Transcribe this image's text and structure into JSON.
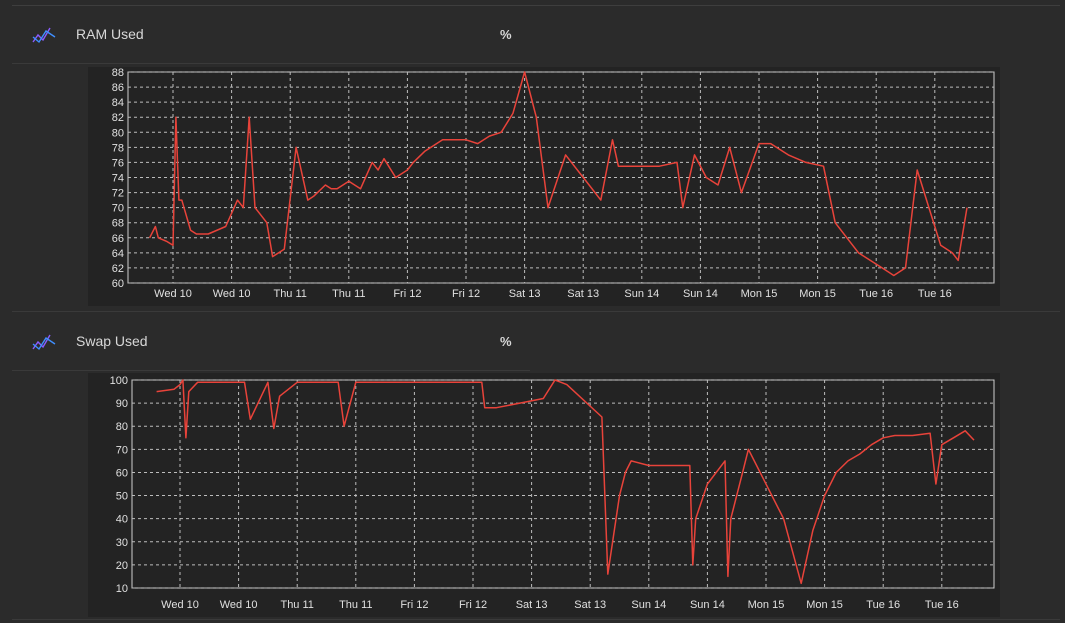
{
  "panels": [
    {
      "title": "RAM Used",
      "unit": "%",
      "icon": "chart-line-icon"
    },
    {
      "title": "Swap Used",
      "unit": "%",
      "icon": "chart-line-icon"
    }
  ],
  "colors": {
    "background": "#2b2b2b",
    "plot_background": "#232323",
    "series": "#e8433a",
    "grid": "#bdbdbd",
    "icon_purple": "#8a5cff",
    "icon_blue": "#3f8fff"
  },
  "chart_data": [
    {
      "type": "line",
      "title": "RAM Used",
      "xlabel": "",
      "ylabel": "",
      "ylim": [
        60,
        88
      ],
      "yticks": [
        60,
        62,
        64,
        66,
        68,
        70,
        72,
        74,
        76,
        78,
        80,
        82,
        84,
        86,
        88
      ],
      "categories": [
        "Wed 10",
        "Wed 10",
        "Thu 11",
        "Thu 11",
        "Fri 12",
        "Fri 12",
        "Sat 13",
        "Sat 13",
        "Sun 14",
        "Sun 14",
        "Mon 15",
        "Mon 15",
        "Tue 16",
        "Tue 16"
      ],
      "grid": true,
      "series": [
        {
          "x": [
            -0.4,
            -0.3,
            -0.25,
            -0.1,
            0,
            0.05,
            0.1,
            0.15,
            0.3,
            0.4,
            0.6,
            0.9,
            1.1,
            1.2,
            1.3,
            1.4,
            1.6,
            1.7,
            1.8,
            1.9,
            2.1,
            2.3,
            2.4,
            2.6,
            2.7,
            2.8,
            3.0,
            3.2,
            3.4,
            3.5,
            3.6,
            3.8,
            4.0,
            4.1,
            4.3,
            4.6,
            5.0,
            5.2,
            5.4,
            5.6,
            5.8,
            6.0,
            6.2,
            6.4,
            6.7,
            7.1,
            7.3,
            7.5,
            7.6,
            7.8,
            8.0,
            8.3,
            8.6,
            8.7,
            8.9,
            9.1,
            9.3,
            9.5,
            9.7,
            10.0,
            10.2,
            10.5,
            10.8,
            11.1,
            11.3,
            11.5,
            11.7,
            11.9,
            12.1,
            12.3,
            12.5,
            12.7,
            12.9,
            13.1,
            13.3,
            13.4,
            13.55
          ],
          "values": [
            66,
            67.5,
            66,
            65.5,
            65,
            82,
            71,
            71,
            67,
            66.5,
            66.5,
            67.5,
            71,
            70,
            82,
            70,
            68,
            63.5,
            64,
            64.5,
            78,
            71,
            71.5,
            73,
            72.5,
            72.5,
            73.5,
            72.5,
            76,
            75,
            76.5,
            74,
            75,
            76,
            77.5,
            79,
            79,
            78.5,
            79.5,
            80,
            82.5,
            88,
            82,
            70,
            77,
            73,
            71,
            79,
            75.5,
            75.5,
            75.5,
            75.5,
            76,
            70,
            77,
            74,
            73,
            78,
            72,
            78.5,
            78.5,
            77,
            76,
            75.5,
            68,
            66,
            64,
            63,
            62,
            61,
            62,
            75,
            70,
            65,
            64,
            63,
            70
          ]
        }
      ]
    },
    {
      "type": "line",
      "title": "Swap Used",
      "xlabel": "",
      "ylabel": "",
      "ylim": [
        10,
        100
      ],
      "yticks": [
        10,
        20,
        30,
        40,
        50,
        60,
        70,
        80,
        90,
        100
      ],
      "categories": [
        "Wed 10",
        "Wed 10",
        "Thu 11",
        "Thu 11",
        "Fri 12",
        "Fri 12",
        "Sat 13",
        "Sat 13",
        "Sun 14",
        "Sun 14",
        "Mon 15",
        "Mon 15",
        "Tue 16",
        "Tue 16"
      ],
      "grid": true,
      "series": [
        {
          "x": [
            -0.4,
            -0.1,
            0,
            0.05,
            0.1,
            0.15,
            0.3,
            0.6,
            1.0,
            1.1,
            1.2,
            1.5,
            1.6,
            1.7,
            2.0,
            2.5,
            2.7,
            2.8,
            3.0,
            3.2,
            3.4,
            3.8,
            4.0,
            4.3,
            4.7,
            5.0,
            5.15,
            5.2,
            5.4,
            5.8,
            6.2,
            6.4,
            6.6,
            7.2,
            7.3,
            7.5,
            7.6,
            7.7,
            8.0,
            8.5,
            8.7,
            8.75,
            8.8,
            9.0,
            9.3,
            9.35,
            9.4,
            9.6,
            9.7,
            9.9,
            10.3,
            10.6,
            10.8,
            11.0,
            11.2,
            11.4,
            11.6,
            11.8,
            12.0,
            12.2,
            12.5,
            12.8,
            12.9,
            13.0,
            13.2,
            13.4,
            13.55
          ],
          "values": [
            95,
            96,
            98,
            100,
            75,
            95,
            99,
            99,
            99,
            99,
            83,
            99,
            79,
            93,
            99,
            99,
            99,
            80,
            99,
            99,
            99,
            99,
            99,
            99,
            99,
            99,
            99,
            88,
            88,
            90,
            92,
            100,
            98,
            84,
            16,
            50,
            60,
            65,
            63,
            63,
            63,
            20,
            40,
            55,
            65,
            15,
            40,
            60,
            70,
            60,
            40,
            12,
            35,
            50,
            60,
            65,
            68,
            72,
            75,
            76,
            76,
            77,
            55,
            72,
            75,
            78,
            74
          ]
        }
      ]
    }
  ]
}
